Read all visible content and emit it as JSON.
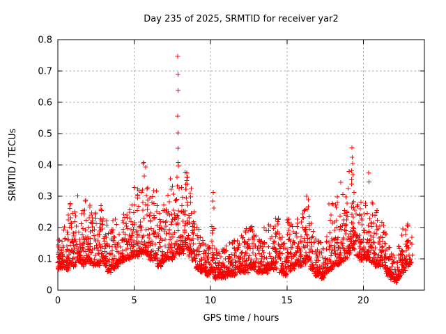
{
  "page": {
    "background": "#ffffff",
    "kind": "gnuplot scatter screenshot"
  },
  "chart_data": {
    "type": "scatter",
    "title": "Day 235 of 2025, SRMTID for receiver yar2",
    "xlabel": "GPS time / hours",
    "ylabel": "SRMTID / TECUs",
    "xlim": [
      0,
      24
    ],
    "ylim": [
      0,
      0.8
    ],
    "x_ticks": [
      {
        "v": 0,
        "label": "0"
      },
      {
        "v": 5,
        "label": "5"
      },
      {
        "v": 10,
        "label": "10"
      },
      {
        "v": 15,
        "label": "15"
      },
      {
        "v": 20,
        "label": "20"
      }
    ],
    "y_ticks": [
      {
        "v": 0.0,
        "label": "0"
      },
      {
        "v": 0.1,
        "label": "0.1"
      },
      {
        "v": 0.2,
        "label": "0.2"
      },
      {
        "v": 0.3,
        "label": "0.3"
      },
      {
        "v": 0.4,
        "label": "0.4"
      },
      {
        "v": 0.5,
        "label": "0.5"
      },
      {
        "v": 0.6,
        "label": "0.6"
      },
      {
        "v": 0.7,
        "label": "0.7"
      },
      {
        "v": 0.8,
        "label": "0.8"
      }
    ],
    "grid": {
      "style": "dashed",
      "color": "#a8a8a8"
    },
    "axis_color": "#000000",
    "legend": "none",
    "marker": {
      "shape": "plus",
      "color": "#ff0000",
      "size": 7
    },
    "data_end_hour": 23.2,
    "series": [
      {
        "representation": "density_bands",
        "points_per_band": 28,
        "power_exponent": 2.8,
        "bands": [
          [
            0.0,
            0.25,
            0.07,
            0.18
          ],
          [
            0.25,
            0.25,
            0.07,
            0.2
          ],
          [
            0.5,
            0.25,
            0.07,
            0.24
          ],
          [
            0.75,
            0.25,
            0.08,
            0.3
          ],
          [
            1.0,
            0.25,
            0.08,
            0.28
          ],
          [
            1.25,
            0.25,
            0.09,
            0.31
          ],
          [
            1.5,
            0.25,
            0.08,
            0.26
          ],
          [
            1.75,
            0.25,
            0.09,
            0.32
          ],
          [
            2.0,
            0.25,
            0.09,
            0.27
          ],
          [
            2.25,
            0.25,
            0.08,
            0.25
          ],
          [
            2.5,
            0.25,
            0.08,
            0.23
          ],
          [
            2.75,
            0.25,
            0.09,
            0.27
          ],
          [
            3.0,
            0.25,
            0.08,
            0.22
          ],
          [
            3.25,
            0.25,
            0.06,
            0.2
          ],
          [
            3.5,
            0.25,
            0.07,
            0.22
          ],
          [
            3.75,
            0.25,
            0.08,
            0.24
          ],
          [
            4.0,
            0.25,
            0.09,
            0.24
          ],
          [
            4.25,
            0.25,
            0.1,
            0.26
          ],
          [
            4.5,
            0.25,
            0.1,
            0.28
          ],
          [
            4.75,
            0.25,
            0.11,
            0.3
          ],
          [
            5.0,
            0.25,
            0.11,
            0.33
          ],
          [
            5.25,
            0.25,
            0.12,
            0.38
          ],
          [
            5.5,
            0.25,
            0.12,
            0.41
          ],
          [
            5.75,
            0.25,
            0.11,
            0.34
          ],
          [
            6.0,
            0.25,
            0.1,
            0.31
          ],
          [
            6.25,
            0.25,
            0.1,
            0.33
          ],
          [
            6.5,
            0.25,
            0.08,
            0.27
          ],
          [
            6.75,
            0.25,
            0.09,
            0.28
          ],
          [
            7.0,
            0.25,
            0.1,
            0.3
          ],
          [
            7.25,
            0.25,
            0.1,
            0.36
          ],
          [
            7.5,
            0.25,
            0.11,
            0.33
          ],
          [
            7.75,
            0.25,
            0.12,
            0.37
          ],
          [
            8.0,
            0.25,
            0.12,
            0.35
          ],
          [
            8.25,
            0.25,
            0.13,
            0.375
          ],
          [
            8.5,
            0.25,
            0.11,
            0.33
          ],
          [
            8.75,
            0.25,
            0.1,
            0.28
          ],
          [
            9.0,
            0.25,
            0.07,
            0.22
          ],
          [
            9.25,
            0.25,
            0.06,
            0.18
          ],
          [
            9.5,
            0.25,
            0.06,
            0.16
          ],
          [
            9.75,
            0.25,
            0.05,
            0.15
          ],
          [
            10.0,
            0.25,
            0.06,
            0.22
          ],
          [
            10.25,
            0.25,
            0.04,
            0.14
          ],
          [
            10.5,
            0.25,
            0.04,
            0.12
          ],
          [
            10.75,
            0.25,
            0.04,
            0.13
          ],
          [
            11.0,
            0.25,
            0.05,
            0.15
          ],
          [
            11.25,
            0.25,
            0.05,
            0.18
          ],
          [
            11.5,
            0.25,
            0.05,
            0.17
          ],
          [
            11.75,
            0.25,
            0.06,
            0.16
          ],
          [
            12.0,
            0.25,
            0.06,
            0.18
          ],
          [
            12.25,
            0.25,
            0.06,
            0.2
          ],
          [
            12.5,
            0.25,
            0.07,
            0.21
          ],
          [
            12.75,
            0.25,
            0.07,
            0.22
          ],
          [
            13.0,
            0.25,
            0.06,
            0.17
          ],
          [
            13.25,
            0.25,
            0.06,
            0.19
          ],
          [
            13.5,
            0.25,
            0.06,
            0.2
          ],
          [
            13.75,
            0.25,
            0.07,
            0.21
          ],
          [
            14.0,
            0.25,
            0.07,
            0.21
          ],
          [
            14.25,
            0.25,
            0.07,
            0.23
          ],
          [
            14.5,
            0.25,
            0.06,
            0.18
          ],
          [
            14.75,
            0.25,
            0.05,
            0.16
          ],
          [
            15.0,
            0.25,
            0.06,
            0.23
          ],
          [
            15.25,
            0.25,
            0.07,
            0.22
          ],
          [
            15.5,
            0.25,
            0.08,
            0.25
          ],
          [
            15.75,
            0.25,
            0.08,
            0.24
          ],
          [
            16.0,
            0.25,
            0.09,
            0.27
          ],
          [
            16.25,
            0.25,
            0.1,
            0.3
          ],
          [
            16.5,
            0.25,
            0.07,
            0.22
          ],
          [
            16.75,
            0.25,
            0.05,
            0.18
          ],
          [
            17.0,
            0.25,
            0.05,
            0.16
          ],
          [
            17.25,
            0.25,
            0.04,
            0.15
          ],
          [
            17.5,
            0.25,
            0.06,
            0.18
          ],
          [
            17.75,
            0.25,
            0.07,
            0.28
          ],
          [
            18.0,
            0.25,
            0.08,
            0.28
          ],
          [
            18.25,
            0.25,
            0.08,
            0.3
          ],
          [
            18.5,
            0.25,
            0.09,
            0.35
          ],
          [
            18.75,
            0.25,
            0.1,
            0.33
          ],
          [
            19.0,
            0.25,
            0.12,
            0.38
          ],
          [
            19.25,
            0.25,
            0.13,
            0.39
          ],
          [
            19.5,
            0.25,
            0.11,
            0.33
          ],
          [
            19.75,
            0.25,
            0.1,
            0.28
          ],
          [
            20.0,
            0.25,
            0.1,
            0.29
          ],
          [
            20.25,
            0.25,
            0.1,
            0.31
          ],
          [
            20.5,
            0.25,
            0.09,
            0.29
          ],
          [
            20.75,
            0.25,
            0.08,
            0.26
          ],
          [
            21.0,
            0.25,
            0.08,
            0.22
          ],
          [
            21.25,
            0.25,
            0.07,
            0.22
          ],
          [
            21.5,
            0.25,
            0.05,
            0.16
          ],
          [
            21.75,
            0.25,
            0.04,
            0.13
          ],
          [
            22.0,
            0.25,
            0.03,
            0.12
          ],
          [
            22.25,
            0.25,
            0.04,
            0.15
          ],
          [
            22.5,
            0.25,
            0.06,
            0.2
          ],
          [
            22.75,
            0.25,
            0.08,
            0.22
          ],
          [
            23.0,
            0.2,
            0.08,
            0.19,
            18
          ]
        ],
        "outlier_points": [
          [
            0.02,
            0.145
          ],
          [
            0.01,
            0.115
          ],
          [
            0.04,
            0.16
          ],
          [
            5.58,
            0.405
          ],
          [
            7.38,
            0.356
          ],
          [
            7.42,
            0.322
          ],
          [
            7.85,
            0.747
          ],
          [
            7.86,
            0.689
          ],
          [
            7.87,
            0.638
          ],
          [
            7.85,
            0.556
          ],
          [
            7.86,
            0.502
          ],
          [
            7.86,
            0.453
          ],
          [
            7.88,
            0.408
          ],
          [
            7.89,
            0.397
          ],
          [
            8.45,
            0.375
          ],
          [
            8.5,
            0.36
          ],
          [
            10.18,
            0.312
          ],
          [
            10.15,
            0.285
          ],
          [
            10.21,
            0.262
          ],
          [
            16.28,
            0.3
          ],
          [
            19.25,
            0.455
          ],
          [
            19.27,
            0.424
          ],
          [
            19.31,
            0.405
          ],
          [
            20.35,
            0.375
          ],
          [
            20.37,
            0.346
          ]
        ]
      }
    ]
  }
}
